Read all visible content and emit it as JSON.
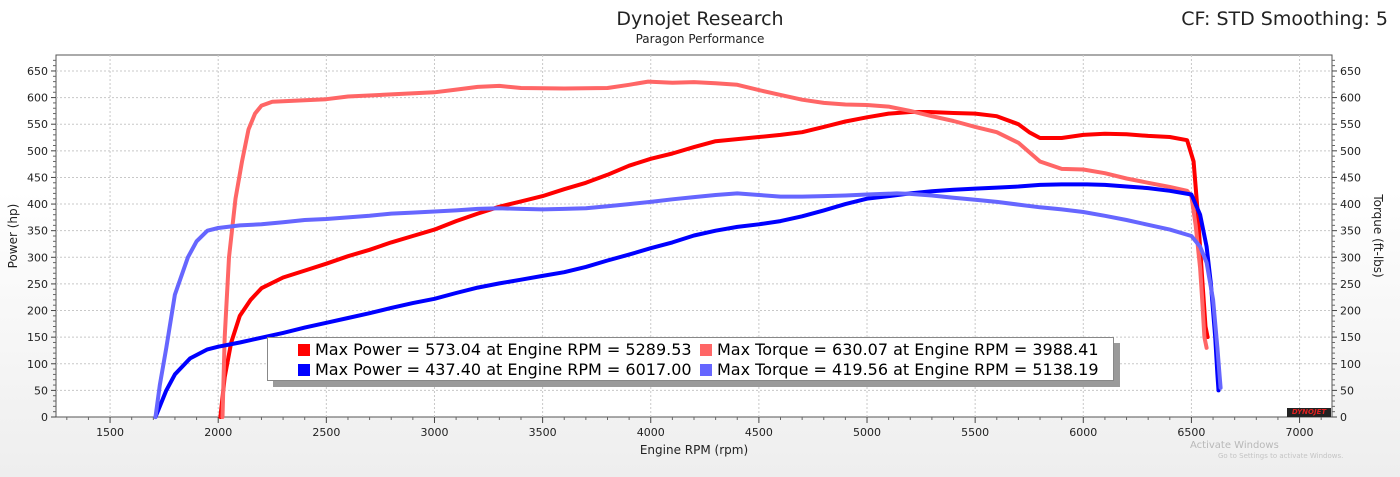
{
  "header": {
    "title": "Dynojet Research",
    "subtitle": "Paragon Performance",
    "cf": "CF: STD Smoothing: 5"
  },
  "legend": [
    {
      "label": "Max Power = 573.04 at Engine RPM = 5289.53",
      "color": "#ff0000"
    },
    {
      "label": "Max Torque = 630.07 at Engine RPM = 3988.41",
      "color": "#ff6666"
    },
    {
      "label": "Max Power = 437.40 at Engine RPM = 6017.00",
      "color": "#0000ff"
    },
    {
      "label": "Max Torque = 419.56 at Engine RPM = 5138.19",
      "color": "#6666ff"
    }
  ],
  "watermark": {
    "line1": "Activate Windows",
    "line2": "Go to Settings to activate Windows."
  },
  "logo_text": "DYNOJET",
  "chart_data": {
    "type": "line",
    "xlabel": "Engine RPM (rpm)",
    "ylabel": "Power (hp)",
    "y2label": "Torque (ft-lbs)",
    "xlim": [
      1250,
      7150
    ],
    "ylim": [
      0,
      680
    ],
    "y2lim": [
      0,
      680
    ],
    "x_ticks": [
      1500,
      2000,
      2500,
      3000,
      3500,
      4000,
      4500,
      5000,
      5500,
      6000,
      6500,
      7000
    ],
    "y_ticks": [
      0,
      50,
      100,
      150,
      200,
      250,
      300,
      350,
      400,
      450,
      500,
      550,
      600,
      650
    ],
    "grid": true,
    "series": [
      {
        "color": "#ff0000",
        "points": [
          [
            2010,
            0
          ],
          [
            2030,
            75
          ],
          [
            2060,
            140
          ],
          [
            2100,
            190
          ],
          [
            2150,
            220
          ],
          [
            2200,
            242
          ],
          [
            2300,
            262
          ],
          [
            2400,
            275
          ],
          [
            2500,
            288
          ],
          [
            2600,
            302
          ],
          [
            2700,
            314
          ],
          [
            2800,
            328
          ],
          [
            2900,
            340
          ],
          [
            3000,
            352
          ],
          [
            3100,
            368
          ],
          [
            3200,
            382
          ],
          [
            3300,
            395
          ],
          [
            3400,
            405
          ],
          [
            3500,
            415
          ],
          [
            3600,
            428
          ],
          [
            3700,
            440
          ],
          [
            3800,
            455
          ],
          [
            3900,
            472
          ],
          [
            4000,
            485
          ],
          [
            4100,
            495
          ],
          [
            4200,
            507
          ],
          [
            4300,
            518
          ],
          [
            4400,
            522
          ],
          [
            4500,
            526
          ],
          [
            4600,
            530
          ],
          [
            4700,
            535
          ],
          [
            4800,
            545
          ],
          [
            4900,
            555
          ],
          [
            5000,
            563
          ],
          [
            5100,
            570
          ],
          [
            5200,
            573
          ],
          [
            5289,
            573
          ],
          [
            5400,
            571
          ],
          [
            5500,
            570
          ],
          [
            5600,
            565
          ],
          [
            5700,
            550
          ],
          [
            5750,
            535
          ],
          [
            5800,
            524
          ],
          [
            5900,
            524
          ],
          [
            6000,
            530
          ],
          [
            6100,
            532
          ],
          [
            6200,
            531
          ],
          [
            6300,
            528
          ],
          [
            6400,
            526
          ],
          [
            6480,
            520
          ],
          [
            6510,
            480
          ],
          [
            6530,
            380
          ],
          [
            6550,
            260
          ],
          [
            6565,
            170
          ],
          [
            6575,
            150
          ]
        ]
      },
      {
        "color": "#ff6666",
        "points": [
          [
            2020,
            0
          ],
          [
            2030,
            150
          ],
          [
            2050,
            300
          ],
          [
            2080,
            410
          ],
          [
            2110,
            480
          ],
          [
            2140,
            540
          ],
          [
            2170,
            570
          ],
          [
            2200,
            585
          ],
          [
            2250,
            592
          ],
          [
            2350,
            594
          ],
          [
            2500,
            597
          ],
          [
            2600,
            602
          ],
          [
            2800,
            606
          ],
          [
            3000,
            610
          ],
          [
            3100,
            615
          ],
          [
            3200,
            620
          ],
          [
            3300,
            622
          ],
          [
            3400,
            618
          ],
          [
            3600,
            617
          ],
          [
            3800,
            618
          ],
          [
            3900,
            624
          ],
          [
            3988,
            630
          ],
          [
            4100,
            628
          ],
          [
            4200,
            629
          ],
          [
            4300,
            627
          ],
          [
            4400,
            624
          ],
          [
            4500,
            614
          ],
          [
            4600,
            605
          ],
          [
            4700,
            596
          ],
          [
            4800,
            590
          ],
          [
            4900,
            587
          ],
          [
            5000,
            586
          ],
          [
            5100,
            583
          ],
          [
            5200,
            575
          ],
          [
            5300,
            565
          ],
          [
            5400,
            556
          ],
          [
            5500,
            545
          ],
          [
            5600,
            535
          ],
          [
            5700,
            515
          ],
          [
            5800,
            480
          ],
          [
            5900,
            466
          ],
          [
            6000,
            465
          ],
          [
            6100,
            458
          ],
          [
            6200,
            448
          ],
          [
            6300,
            440
          ],
          [
            6400,
            432
          ],
          [
            6480,
            425
          ],
          [
            6500,
            415
          ],
          [
            6520,
            360
          ],
          [
            6540,
            280
          ],
          [
            6550,
            220
          ],
          [
            6560,
            150
          ],
          [
            6570,
            130
          ]
        ]
      },
      {
        "color": "#0000ff",
        "points": [
          [
            1710,
            0
          ],
          [
            1730,
            20
          ],
          [
            1760,
            50
          ],
          [
            1800,
            80
          ],
          [
            1870,
            110
          ],
          [
            1950,
            127
          ],
          [
            2000,
            132
          ],
          [
            2100,
            140
          ],
          [
            2200,
            149
          ],
          [
            2300,
            158
          ],
          [
            2400,
            168
          ],
          [
            2500,
            177
          ],
          [
            2600,
            186
          ],
          [
            2700,
            195
          ],
          [
            2800,
            205
          ],
          [
            2900,
            214
          ],
          [
            3000,
            222
          ],
          [
            3100,
            233
          ],
          [
            3200,
            243
          ],
          [
            3300,
            251
          ],
          [
            3400,
            258
          ],
          [
            3500,
            265
          ],
          [
            3600,
            272
          ],
          [
            3700,
            282
          ],
          [
            3800,
            294
          ],
          [
            3900,
            305
          ],
          [
            4000,
            317
          ],
          [
            4100,
            328
          ],
          [
            4200,
            341
          ],
          [
            4300,
            350
          ],
          [
            4400,
            357
          ],
          [
            4500,
            362
          ],
          [
            4600,
            368
          ],
          [
            4700,
            377
          ],
          [
            4800,
            388
          ],
          [
            4900,
            400
          ],
          [
            5000,
            410
          ],
          [
            5100,
            415
          ],
          [
            5200,
            420
          ],
          [
            5300,
            424
          ],
          [
            5400,
            427
          ],
          [
            5500,
            429
          ],
          [
            5600,
            431
          ],
          [
            5700,
            433
          ],
          [
            5800,
            436
          ],
          [
            5900,
            437
          ],
          [
            6017,
            437
          ],
          [
            6100,
            436
          ],
          [
            6200,
            433
          ],
          [
            6300,
            430
          ],
          [
            6400,
            425
          ],
          [
            6500,
            418
          ],
          [
            6540,
            380
          ],
          [
            6570,
            320
          ],
          [
            6590,
            250
          ],
          [
            6610,
            150
          ],
          [
            6620,
            80
          ],
          [
            6625,
            50
          ]
        ]
      },
      {
        "color": "#6666ff",
        "points": [
          [
            1710,
            0
          ],
          [
            1730,
            60
          ],
          [
            1760,
            130
          ],
          [
            1800,
            230
          ],
          [
            1860,
            300
          ],
          [
            1900,
            330
          ],
          [
            1950,
            350
          ],
          [
            2000,
            355
          ],
          [
            2100,
            360
          ],
          [
            2200,
            362
          ],
          [
            2300,
            366
          ],
          [
            2400,
            370
          ],
          [
            2500,
            372
          ],
          [
            2600,
            375
          ],
          [
            2700,
            378
          ],
          [
            2800,
            382
          ],
          [
            2900,
            384
          ],
          [
            3000,
            386
          ],
          [
            3100,
            388
          ],
          [
            3200,
            391
          ],
          [
            3300,
            392
          ],
          [
            3400,
            391
          ],
          [
            3500,
            390
          ],
          [
            3600,
            391
          ],
          [
            3700,
            392
          ],
          [
            3800,
            396
          ],
          [
            3900,
            400
          ],
          [
            4000,
            404
          ],
          [
            4100,
            409
          ],
          [
            4200,
            413
          ],
          [
            4300,
            417
          ],
          [
            4400,
            420
          ],
          [
            4500,
            417
          ],
          [
            4600,
            414
          ],
          [
            4700,
            414
          ],
          [
            4800,
            415
          ],
          [
            4900,
            416
          ],
          [
            5000,
            418
          ],
          [
            5138,
            420
          ],
          [
            5200,
            419
          ],
          [
            5300,
            416
          ],
          [
            5400,
            412
          ],
          [
            5500,
            408
          ],
          [
            5600,
            404
          ],
          [
            5700,
            399
          ],
          [
            5800,
            394
          ],
          [
            5900,
            390
          ],
          [
            6000,
            385
          ],
          [
            6100,
            378
          ],
          [
            6200,
            370
          ],
          [
            6300,
            361
          ],
          [
            6400,
            352
          ],
          [
            6500,
            340
          ],
          [
            6540,
            320
          ],
          [
            6570,
            290
          ],
          [
            6600,
            220
          ],
          [
            6620,
            130
          ],
          [
            6630,
            80
          ],
          [
            6635,
            55
          ]
        ]
      }
    ]
  }
}
